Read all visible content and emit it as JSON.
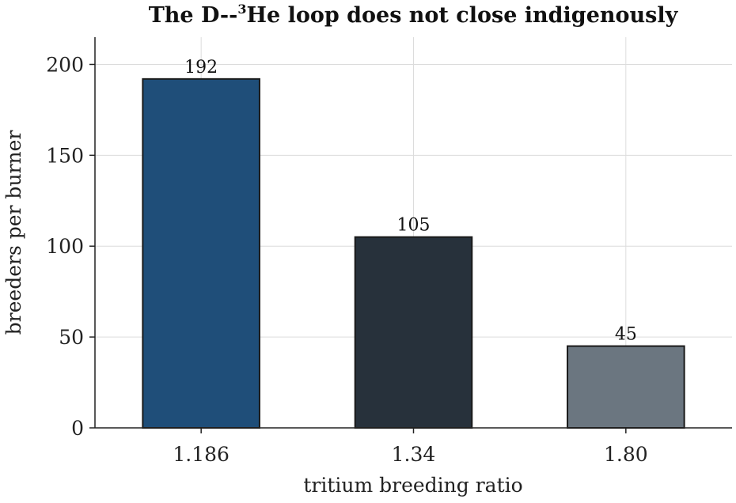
{
  "chart_data": {
    "type": "bar",
    "title": {
      "prefix": "The D--",
      "superscript": "3",
      "suffix": "He loop does not close indigenously"
    },
    "xlabel": "tritium breeding ratio",
    "ylabel": "breeders per burner",
    "categories": [
      "1.186",
      "1.34",
      "1.80"
    ],
    "values": [
      192,
      105,
      45
    ],
    "data_labels": [
      "192",
      "105",
      "45"
    ],
    "bar_colors": [
      "#1f4e79",
      "#27313b",
      "#6b7680"
    ],
    "ylim": [
      0,
      215
    ],
    "yticks": [
      0,
      50,
      100,
      150,
      200
    ],
    "ytick_labels": [
      "0",
      "50",
      "100",
      "150",
      "200"
    ],
    "grid": true,
    "legend": null
  }
}
